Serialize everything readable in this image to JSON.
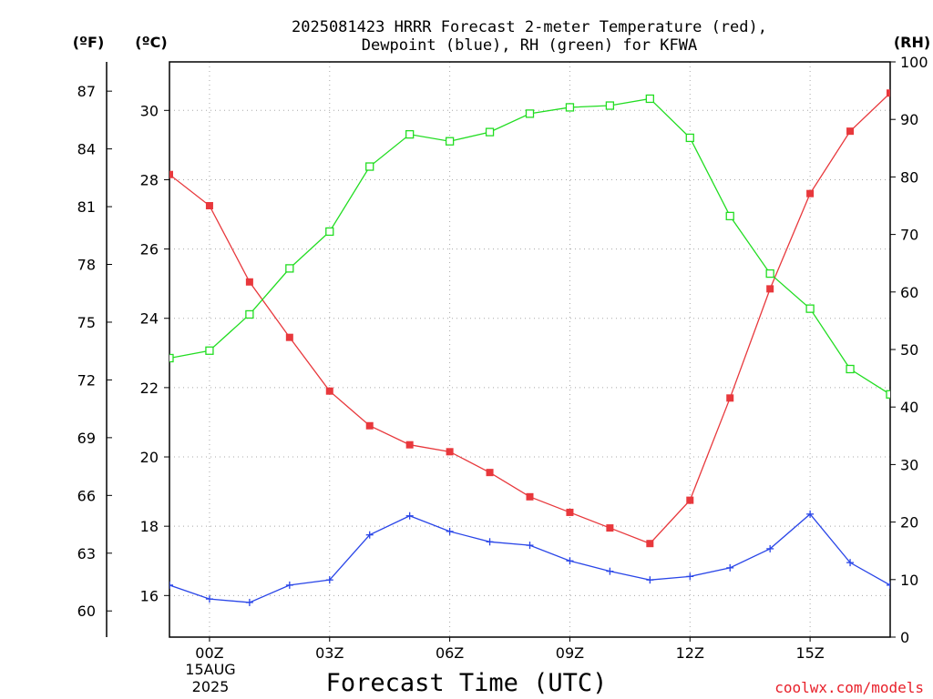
{
  "chart_data": {
    "type": "line",
    "title_line1": "2025081423 HRRR Forecast 2-meter Temperature (red),",
    "title_line2": "Dewpoint (blue), RH (green) for KFWA",
    "xlabel": "Forecast Time (UTC)",
    "credit": "coolwx.com/models",
    "unit_f": "(ºF)",
    "unit_c": "(ºC)",
    "unit_rh": "(RH)",
    "date_line1": "15AUG",
    "date_line2": "2025",
    "x_labels": [
      "00Z",
      "03Z",
      "06Z",
      "09Z",
      "12Z",
      "15Z"
    ],
    "x": [
      -1,
      0,
      1,
      2,
      3,
      4,
      5,
      6,
      7,
      8,
      9,
      10,
      11,
      12,
      13,
      14,
      15,
      16,
      17
    ],
    "xlim": [
      -1,
      17
    ],
    "ylim_c": [
      14.8,
      31.4
    ],
    "ylim_rh": [
      0,
      100
    ],
    "f_ticks": [
      60,
      63,
      66,
      69,
      72,
      75,
      78,
      81,
      84,
      87
    ],
    "c_ticks": [
      16,
      18,
      20,
      22,
      24,
      26,
      28,
      30
    ],
    "rh_ticks": [
      0,
      10,
      20,
      30,
      40,
      50,
      60,
      70,
      80,
      90,
      100
    ],
    "grid": true,
    "series": [
      {
        "name": "Temperature",
        "color": "#e8383c",
        "marker": "filled-square",
        "axis": "c",
        "values": [
          28.15,
          27.25,
          25.05,
          23.45,
          21.9,
          20.9,
          20.35,
          20.15,
          19.55,
          18.85,
          18.4,
          17.95,
          17.5,
          18.75,
          21.7,
          24.85,
          27.6,
          29.4,
          30.5
        ]
      },
      {
        "name": "Dewpoint",
        "color": "#2a46e8",
        "marker": "plus",
        "axis": "c",
        "values": [
          16.3,
          15.9,
          15.8,
          16.3,
          16.45,
          17.75,
          18.3,
          17.85,
          17.55,
          17.45,
          17.0,
          16.7,
          16.45,
          16.55,
          16.8,
          17.35,
          18.35,
          16.95,
          16.3
        ]
      },
      {
        "name": "RH",
        "color": "#22dd22",
        "marker": "open-square",
        "axis": "rh",
        "values": [
          48.5,
          49.8,
          56.1,
          64.1,
          70.5,
          81.8,
          87.4,
          86.2,
          87.8,
          91.0,
          92.1,
          92.4,
          93.6,
          86.8,
          73.2,
          63.2,
          57.1,
          46.6,
          42.2
        ]
      }
    ]
  }
}
